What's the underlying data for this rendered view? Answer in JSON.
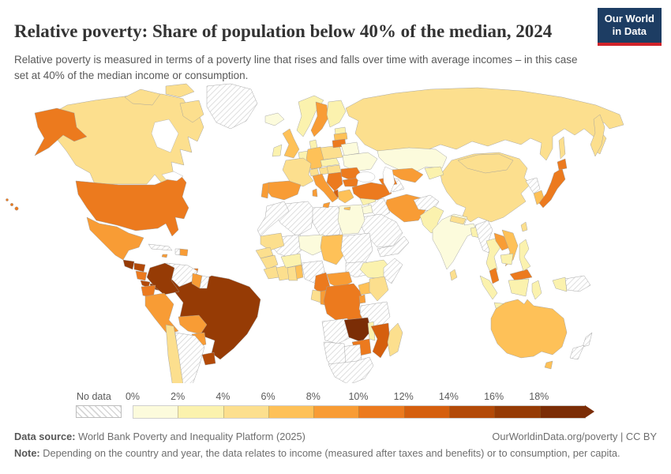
{
  "header": {
    "title": "Relative poverty: Share of population below 40% of the median, 2024",
    "logo": {
      "line1": "Our World",
      "line2": "in Data",
      "bg_color": "#1d3d63",
      "accent_color": "#d1232a"
    }
  },
  "subtitle": "Relative poverty is measured in terms of a poverty line that rises and falls over time with average incomes – in this case set at 40% of the median income or consumption.",
  "legend": {
    "no_data_label": "No data",
    "ticks": [
      "0%",
      "2%",
      "4%",
      "6%",
      "8%",
      "10%",
      "12%",
      "14%",
      "16%",
      "18%"
    ]
  },
  "footer": {
    "data_source_label": "Data source:",
    "data_source": "World Bank Poverty and Inequality Platform (2025)",
    "link": "OurWorldinData.org/poverty | CC BY",
    "note_label": "Note:",
    "note": "Depending on the country and year, the data relates to income (measured after taxes and benefits) or to consumption, per capita."
  },
  "chart_data": {
    "type": "choropleth_map",
    "title": "Relative poverty: Share of population below 40% of the median, 2024",
    "year": 2024,
    "unit": "% of population",
    "legend_position": "bottom",
    "bands": [
      "0-2%",
      "2-4%",
      "4-6%",
      "6-8%",
      "8-10%",
      "10-12%",
      "12-14%",
      "14-16%",
      "16-18%",
      "18%+"
    ],
    "band_colors": {
      "0-2%": "#fcfbdc",
      "2-4%": "#fbf2ae",
      "4-6%": "#fcdf8e",
      "6-8%": "#fec158",
      "8-10%": "#f89c35",
      "10-12%": "#ec7a1e",
      "12-14%": "#d55f0e",
      "14-16%": "#b34a08",
      "16-18%": "#963b05",
      "18%+": "#7b2d06"
    },
    "no_data": {
      "label": "No data",
      "pattern": "diagonal-hatch",
      "hatch_color": "#d6d6d6"
    },
    "countries": {
      "greenland": "No data",
      "canada": "4-6%",
      "united-states": "10-12%",
      "mexico": "8-10%",
      "guatemala": "16-18%",
      "honduras": "14-16%",
      "nicaragua": "10-12%",
      "costa-rica": "14-16%",
      "panama": "16-18%",
      "cuba": "No data",
      "haiti": "No data",
      "dominican-republic": "8-10%",
      "jamaica": "8-10%",
      "trinidad-and-tobago": "10-12%",
      "colombia": "16-18%",
      "venezuela": "No data",
      "guyana": "8-10%",
      "suriname": "No data",
      "ecuador": "10-12%",
      "peru": "8-10%",
      "brazil": "16-18%",
      "bolivia": "8-10%",
      "paraguay": "8-10%",
      "uruguay": "14-16%",
      "chile": "4-6%",
      "argentina": "No data",
      "iceland": "0-2%",
      "norway": "2-4%",
      "sweden": "8-10%",
      "finland": "2-4%",
      "denmark": "2-4%",
      "united-kingdom": "6-8%",
      "ireland": "2-4%",
      "benelux": "2-4%",
      "germany": "6-8%",
      "france": "4-6%",
      "spain": "8-10%",
      "portugal": "8-10%",
      "switzerland": "4-6%",
      "austria": "4-6%",
      "czechia": "2-4%",
      "poland": "4-6%",
      "hungary": "4-6%",
      "estonia": "2-4%",
      "latvia": "6-8%",
      "lithuania": "10-12%",
      "belarus": "0-2%",
      "ukraine": "0-2%",
      "romania": "10-12%",
      "bulgaria": "10-12%",
      "serbia": "10-12%",
      "albania": "12-14%",
      "greece": "6-8%",
      "italy": "8-10%",
      "russia": "4-6%",
      "kazakhstan": "0-2%",
      "uzbekistan": "8-10%",
      "turkmenistan": "No data",
      "kyrgyzstan": "2-4%",
      "azerbaijan": "10-12%",
      "turkey": "10-12%",
      "syria": "2-4%",
      "israel": "12-14%",
      "jordan": "0-2%",
      "iraq": "No data",
      "saudi-arabia": "No data",
      "yemen": "No data",
      "iran": "8-10%",
      "afghanistan": "No data",
      "pakistan": "2-4%",
      "india": "0-2%",
      "nepal": "4-6%",
      "bangladesh": "2-4%",
      "sri-lanka": "4-6%",
      "china": "4-6%",
      "mongolia": "4-6%",
      "north-korea": "No data",
      "south-korea": "6-8%",
      "japan": "10-12%",
      "taiwan": "4-6%",
      "myanmar": "No data",
      "thailand": "2-4%",
      "laos": "8-10%",
      "vietnam": "6-8%",
      "cambodia": "2-4%",
      "malaysia": "10-12%",
      "indonesia": "2-4%",
      "philippines": "2-4%",
      "papua-new-guinea": "No data",
      "australia": "6-8%",
      "new-zealand": "No data",
      "morocco": "No data",
      "algeria": "No data",
      "libya": "No data",
      "egypt": "0-2%",
      "mauritania": "4-6%",
      "mali": "No data",
      "niger": "0-2%",
      "chad": "6-8%",
      "sudan": "No data",
      "south-sudan": "No data",
      "ethiopia": "2-4%",
      "somalia": "No data",
      "senegal": "4-6%",
      "guinea": "4-6%",
      "liberia": "4-6%",
      "cote-divoire": "4-6%",
      "ghana": "4-6%",
      "benin": "6-8%",
      "burkina-faso": "2-4%",
      "nigeria": "No data",
      "cameroon": "10-12%",
      "central-african-republic": "8-10%",
      "gabon": "4-6%",
      "congo": "8-10%",
      "democratic-republic-of-congo": "10-12%",
      "uganda": "6-8%",
      "kenya": "4-6%",
      "burundi": "8-10%",
      "tanzania": "No data",
      "angola": "No data",
      "zambia": "18%+",
      "malawi": "2-4%",
      "mozambique": "12-14%",
      "zimbabwe": "10-12%",
      "botswana": "No data",
      "namibia": "No data",
      "south-africa": "No data",
      "madagascar": "4-6%"
    }
  }
}
